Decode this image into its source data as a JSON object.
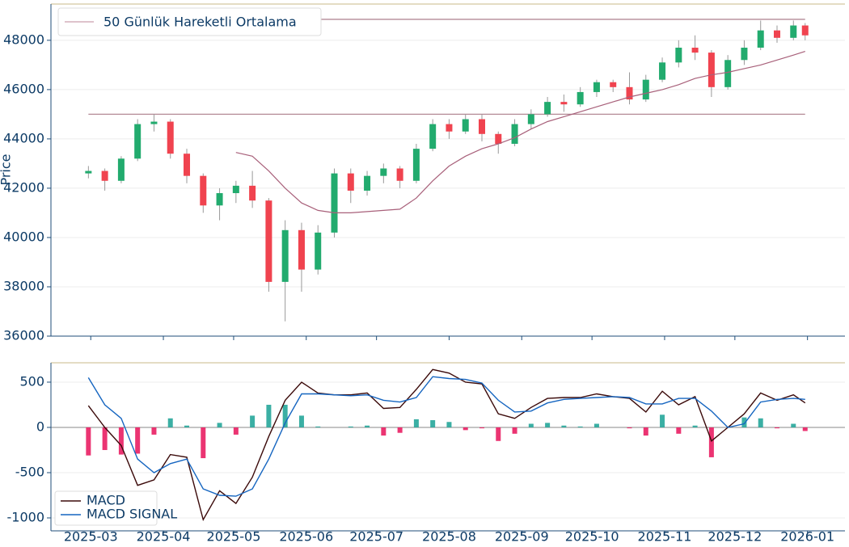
{
  "chart_data": [
    {
      "type": "candlestick",
      "ylabel": "Price",
      "legend": "upper left",
      "xlim": [
        "2025-02-12",
        "2026-01-17"
      ],
      "ylim": [
        36000,
        49470
      ],
      "yticks": [
        36000,
        38000,
        40000,
        42000,
        44000,
        46000,
        48000
      ],
      "grid": true,
      "up_color": "#22ab6e",
      "down_color": "#f0434f",
      "wick_color": "#999999",
      "x": [
        "2025-02-28",
        "2025-03-07",
        "2025-03-14",
        "2025-03-21",
        "2025-03-28",
        "2025-04-04",
        "2025-04-11",
        "2025-04-18",
        "2025-04-25",
        "2025-05-02",
        "2025-05-09",
        "2025-05-16",
        "2025-05-23",
        "2025-05-30",
        "2025-06-06",
        "2025-06-13",
        "2025-06-20",
        "2025-06-27",
        "2025-07-04",
        "2025-07-11",
        "2025-07-18",
        "2025-07-25",
        "2025-08-01",
        "2025-08-08",
        "2025-08-15",
        "2025-08-22",
        "2025-08-29",
        "2025-09-05",
        "2025-09-12",
        "2025-09-19",
        "2025-09-26",
        "2025-10-03",
        "2025-10-10",
        "2025-10-17",
        "2025-10-24",
        "2025-10-31",
        "2025-11-07",
        "2025-11-14",
        "2025-11-21",
        "2025-11-28",
        "2025-12-05",
        "2025-12-12",
        "2025-12-19",
        "2025-12-26",
        "2025-12-31"
      ],
      "open": [
        42600,
        42700,
        42300,
        43200,
        44600,
        44700,
        43400,
        42500,
        41300,
        41800,
        42100,
        41500,
        38200,
        40300,
        38700,
        40200,
        42600,
        41900,
        42500,
        42800,
        42300,
        43600,
        44600,
        44300,
        44800,
        44200,
        43800,
        44600,
        45000,
        45500,
        45400,
        45900,
        46300,
        46100,
        45600,
        46400,
        47100,
        47700,
        47500,
        46100,
        47200,
        47700,
        48400,
        48100,
        48600
      ],
      "high": [
        42900,
        42800,
        43300,
        44800,
        45000,
        44800,
        43600,
        42600,
        42000,
        42300,
        42700,
        41600,
        40700,
        40600,
        40500,
        42800,
        42800,
        42700,
        43000,
        42900,
        43800,
        44800,
        44800,
        45000,
        45000,
        44300,
        44800,
        45200,
        45700,
        45800,
        46100,
        46400,
        46400,
        46700,
        46600,
        47300,
        48000,
        48200,
        47600,
        47400,
        48000,
        48800,
        48600,
        48800,
        48700
      ],
      "low": [
        42400,
        41900,
        42200,
        43100,
        44300,
        43200,
        42200,
        41000,
        40700,
        41400,
        41200,
        37800,
        36600,
        37800,
        38500,
        40000,
        41400,
        41700,
        42200,
        42000,
        42200,
        43500,
        44000,
        44200,
        43900,
        43400,
        43700,
        44400,
        44900,
        45100,
        45300,
        45700,
        45900,
        45400,
        45500,
        46300,
        46900,
        47200,
        45700,
        46000,
        47000,
        47600,
        47900,
        48000,
        48000
      ],
      "close": [
        42700,
        42300,
        43200,
        44600,
        44700,
        43400,
        42500,
        41300,
        41800,
        42100,
        41500,
        38200,
        40300,
        38700,
        40200,
        42600,
        41900,
        42500,
        42800,
        42300,
        43600,
        44600,
        44300,
        44800,
        44200,
        43800,
        44600,
        45000,
        45500,
        45400,
        45900,
        46300,
        46100,
        45600,
        46400,
        47100,
        47700,
        47500,
        46100,
        47200,
        47700,
        48400,
        48100,
        48600,
        48200
      ],
      "hlines": [
        48850,
        45000
      ],
      "hline_color": "#b48a96",
      "series": [
        {
          "name": "50 Günlük Hareketli Ortalama",
          "color": "#a8607a",
          "values": [
            null,
            null,
            null,
            null,
            null,
            null,
            null,
            null,
            null,
            43450,
            43300,
            42700,
            42000,
            41400,
            41100,
            41000,
            41000,
            41050,
            41100,
            41150,
            41600,
            42300,
            42900,
            43300,
            43600,
            43800,
            44050,
            44400,
            44700,
            44900,
            45100,
            45300,
            45500,
            45700,
            45850,
            46000,
            46200,
            46450,
            46600,
            46700,
            46850,
            47000,
            47200,
            47400,
            47550
          ]
        }
      ]
    },
    {
      "type": "macd",
      "legend": "lower left",
      "ylim": [
        -1143,
        714
      ],
      "yticks": [
        -1000,
        -500,
        0,
        500
      ],
      "grid": true,
      "xticks": [
        "2025-03",
        "2025-04",
        "2025-05",
        "2025-06",
        "2025-07",
        "2025-08",
        "2025-09",
        "2025-10",
        "2025-11",
        "2025-12",
        "2026-01"
      ],
      "histogram": {
        "pos_color": "#26a69a",
        "neg_color": "#e91e63",
        "values": [
          -310,
          -250,
          -300,
          -290,
          -80,
          100,
          20,
          -340,
          50,
          -80,
          130,
          250,
          250,
          130,
          10,
          0,
          10,
          20,
          -90,
          -60,
          90,
          80,
          60,
          -30,
          -10,
          -150,
          -70,
          40,
          50,
          20,
          10,
          40,
          0,
          -10,
          -90,
          140,
          -70,
          20,
          -330,
          0,
          110,
          100,
          -10,
          40,
          -40
        ]
      },
      "series": [
        {
          "name": "MACD",
          "color": "#3b0a0a",
          "values": [
            240,
            0,
            -200,
            -640,
            -580,
            -300,
            -330,
            -1020,
            -700,
            -840,
            -550,
            -100,
            300,
            500,
            380,
            360,
            360,
            380,
            210,
            220,
            420,
            640,
            600,
            500,
            480,
            150,
            100,
            220,
            320,
            330,
            330,
            370,
            340,
            320,
            170,
            400,
            250,
            340,
            -150,
            0,
            150,
            380,
            300,
            360,
            270
          ]
        },
        {
          "name": "MACD SIGNAL",
          "color": "#1565c0",
          "values": [
            550,
            250,
            100,
            -350,
            -500,
            -400,
            -350,
            -680,
            -750,
            -760,
            -680,
            -350,
            50,
            370,
            370,
            360,
            350,
            360,
            300,
            280,
            330,
            560,
            540,
            530,
            490,
            300,
            170,
            180,
            270,
            310,
            320,
            330,
            340,
            330,
            260,
            260,
            320,
            320,
            180,
            0,
            40,
            280,
            310,
            320,
            310
          ]
        }
      ]
    }
  ]
}
